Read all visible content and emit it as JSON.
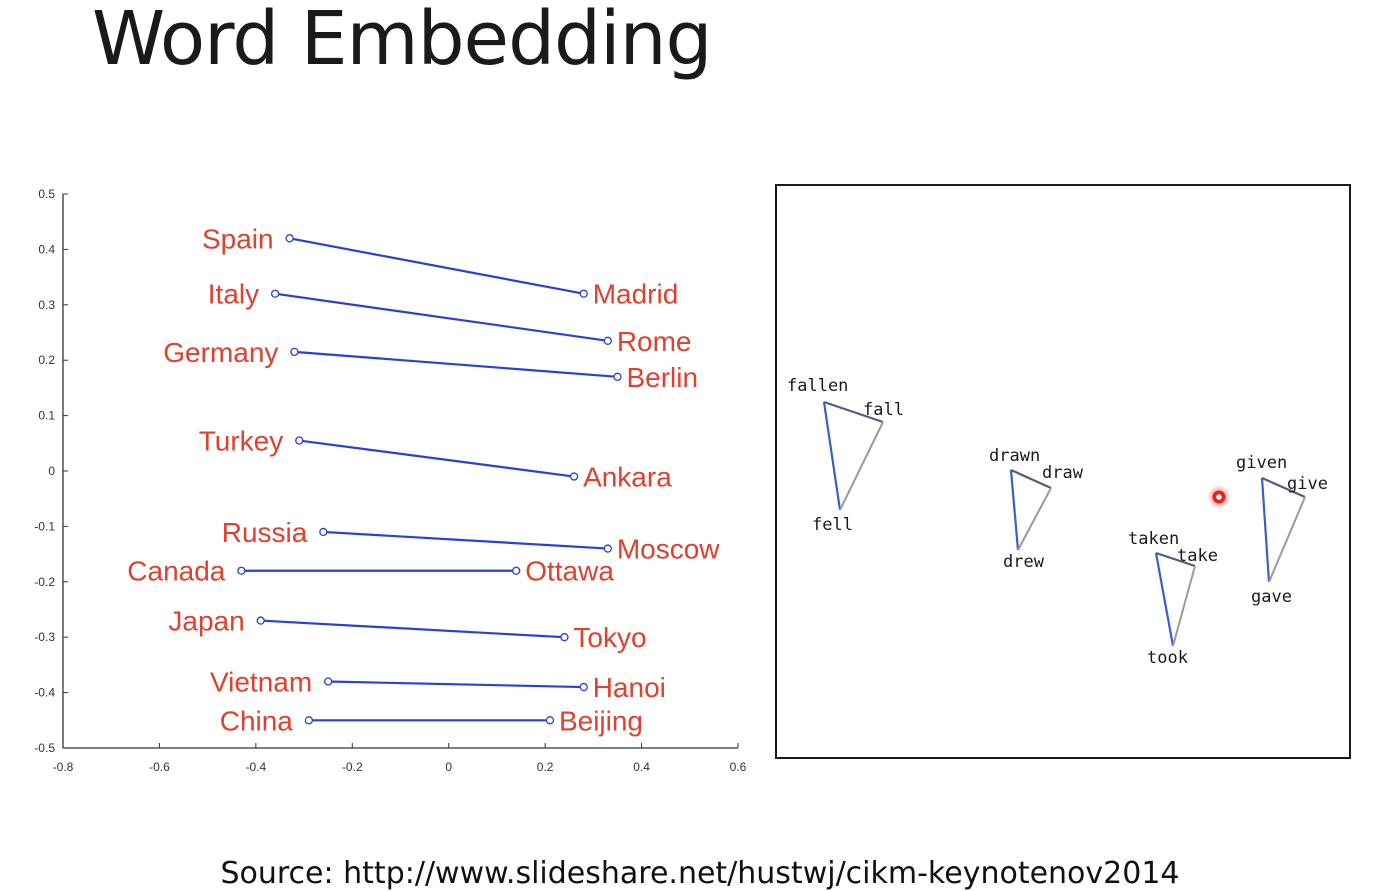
{
  "slide": {
    "title": "Word Embedding",
    "source": "Source: http://www.slideshare.net/hustwj/cikm-keynotenov2014"
  },
  "colors": {
    "line": "#2b3fd6",
    "label": "#e0402e",
    "axis": "#333333",
    "triangle_edge_a": "#3a5fc8",
    "triangle_edge_b": "#9a9a9a",
    "triangle_top": "#555a80",
    "cursor": "#e8211c"
  },
  "chart_data": [
    {
      "type": "line",
      "title": "",
      "xlabel": "",
      "ylabel": "",
      "xlim": [
        -0.8,
        0.6
      ],
      "ylim": [
        -0.5,
        0.5
      ],
      "x_ticks": [
        "-0.8",
        "-0.6",
        "-0.4",
        "-0.2",
        "0",
        "0.2",
        "0.4",
        "0.6"
      ],
      "y_ticks": [
        "0.5",
        "0.4",
        "0.3",
        "0.2",
        "0.1",
        "0",
        "-0.1",
        "-0.2",
        "-0.3",
        "-0.4",
        "-0.5"
      ],
      "grid": false,
      "pairs": [
        {
          "country": "Spain",
          "capital": "Madrid",
          "country_xy": [
            -0.33,
            0.42
          ],
          "capital_xy": [
            0.28,
            0.32
          ]
        },
        {
          "country": "Italy",
          "capital": "Rome",
          "country_xy": [
            -0.36,
            0.32
          ],
          "capital_xy": [
            0.33,
            0.235
          ]
        },
        {
          "country": "Germany",
          "capital": "Berlin",
          "country_xy": [
            -0.32,
            0.215
          ],
          "capital_xy": [
            0.35,
            0.17
          ]
        },
        {
          "country": "Turkey",
          "capital": "Ankara",
          "country_xy": [
            -0.31,
            0.055
          ],
          "capital_xy": [
            0.26,
            -0.01
          ]
        },
        {
          "country": "Russia",
          "capital": "Moscow",
          "country_xy": [
            -0.26,
            -0.11
          ],
          "capital_xy": [
            0.33,
            -0.14
          ]
        },
        {
          "country": "Canada",
          "capital": "Ottawa",
          "country_xy": [
            -0.43,
            -0.18
          ],
          "capital_xy": [
            0.14,
            -0.18
          ]
        },
        {
          "country": "Japan",
          "capital": "Tokyo",
          "country_xy": [
            -0.39,
            -0.27
          ],
          "capital_xy": [
            0.24,
            -0.3
          ]
        },
        {
          "country": "Vietnam",
          "capital": "Hanoi",
          "country_xy": [
            -0.25,
            -0.38
          ],
          "capital_xy": [
            0.28,
            -0.39
          ]
        },
        {
          "country": "China",
          "capital": "Beijing",
          "country_xy": [
            -0.29,
            -0.45
          ],
          "capital_xy": [
            0.21,
            -0.45
          ]
        }
      ]
    },
    {
      "type": "scatter",
      "title": "",
      "grid": false,
      "groups": [
        {
          "present": "fall",
          "past": "fell",
          "participle": "fallen"
        },
        {
          "present": "draw",
          "past": "drew",
          "participle": "drawn"
        },
        {
          "present": "take",
          "past": "took",
          "participle": "taken"
        },
        {
          "present": "give",
          "past": "gave",
          "participle": "given"
        }
      ]
    }
  ]
}
